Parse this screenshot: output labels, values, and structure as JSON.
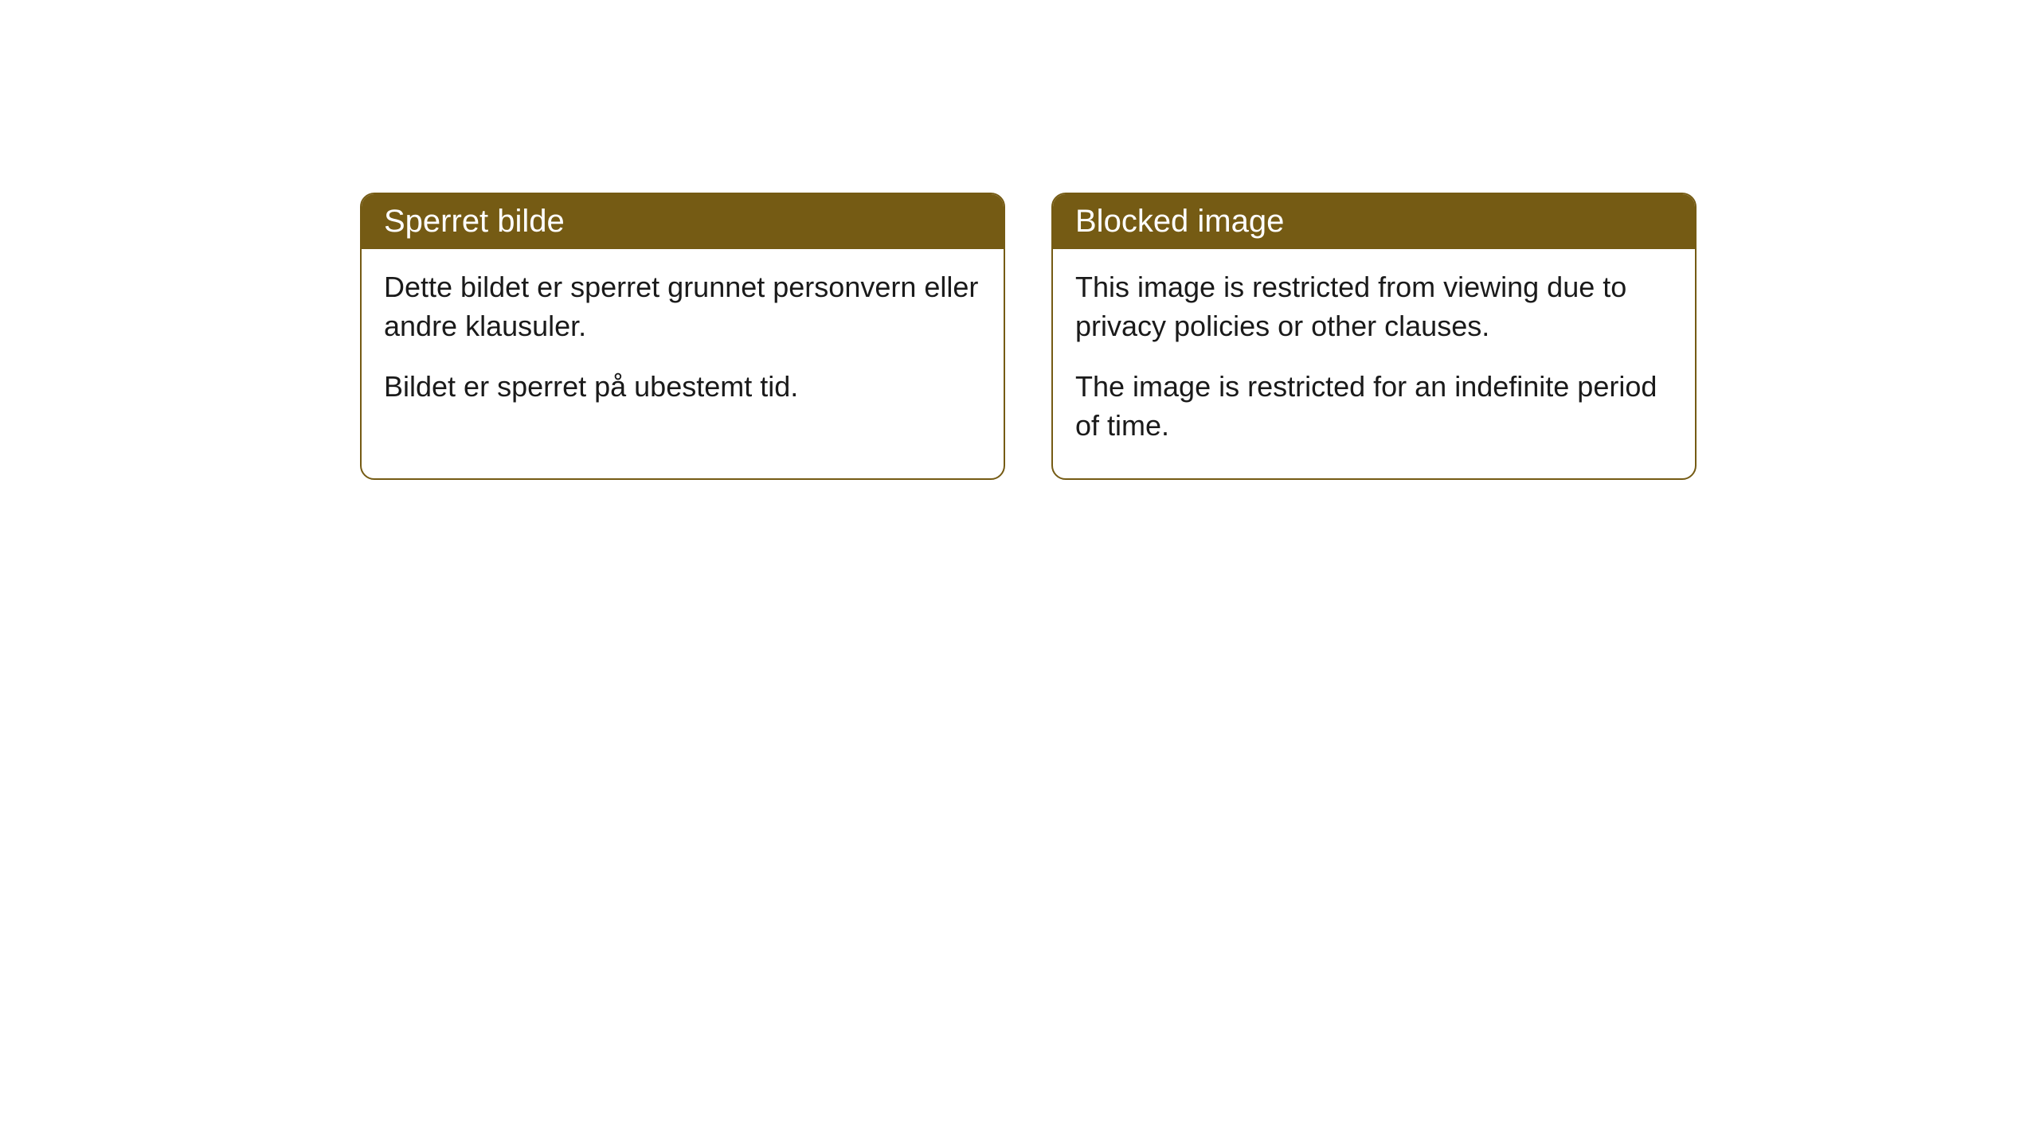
{
  "cards": [
    {
      "title": "Sperret bilde",
      "paragraph1": "Dette bildet er sperret grunnet personvern eller andre klausuler.",
      "paragraph2": "Bildet er sperret på ubestemt tid."
    },
    {
      "title": "Blocked image",
      "paragraph1": "This image is restricted from viewing due to privacy policies or other clauses.",
      "paragraph2": "The image is restricted for an indefinite period of time."
    }
  ],
  "styling": {
    "header_background": "#755b14",
    "header_text_color": "#ffffff",
    "border_color": "#755b14",
    "body_background": "#ffffff",
    "body_text_color": "#1a1a1a",
    "border_radius": 18,
    "title_fontsize": 40,
    "body_fontsize": 36
  }
}
